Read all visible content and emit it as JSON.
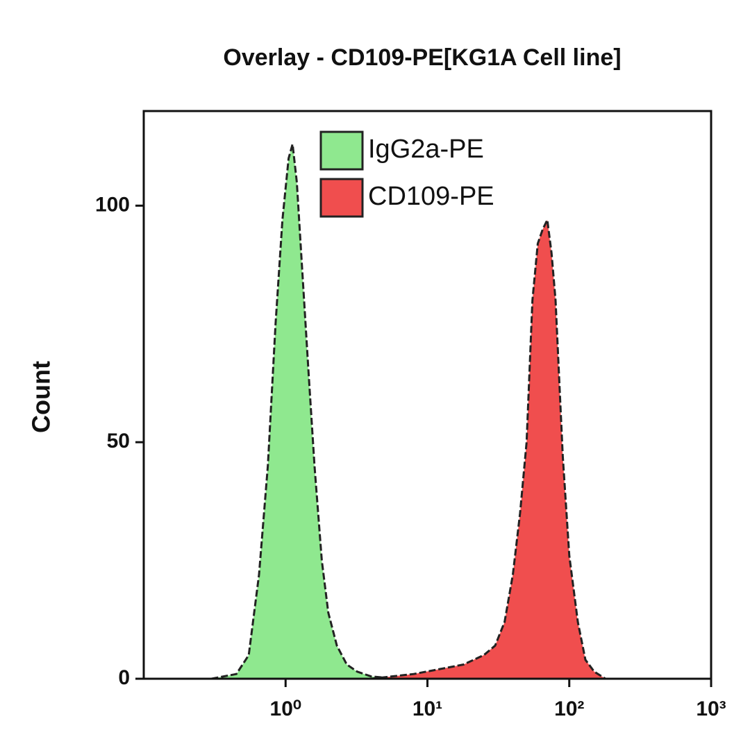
{
  "chart_data": {
    "type": "histogram-overlay",
    "title": "Overlay - CD109-PE[KG1A Cell line]",
    "y_label": "Count",
    "log_x": true,
    "xlim": [
      0.1,
      1000
    ],
    "xticks": [
      {
        "value": 1,
        "label": "10⁰"
      },
      {
        "value": 10,
        "label": "10¹"
      },
      {
        "value": 100,
        "label": "10²"
      },
      {
        "value": 1000,
        "label": "10³"
      }
    ],
    "ylim": [
      0,
      120
    ],
    "yticks": [
      0,
      50,
      100
    ],
    "series": [
      {
        "name": "IgG2a-PE",
        "color": "#8fe88f",
        "x": [
          0.3,
          0.45,
          0.55,
          0.65,
          0.75,
          0.85,
          0.95,
          1.05,
          1.12,
          1.2,
          1.3,
          1.45,
          1.6,
          1.8,
          2.0,
          2.3,
          2.7,
          3.2,
          4,
          6
        ],
        "values": [
          0,
          1,
          5,
          22,
          45,
          75,
          97,
          110,
          113,
          105,
          88,
          65,
          45,
          25,
          14,
          7,
          3,
          1.5,
          0.5,
          0
        ]
      },
      {
        "name": "CD109-PE",
        "color": "#f04e4e",
        "x": [
          4,
          8,
          12,
          18,
          25,
          30,
          35,
          40,
          45,
          50,
          55,
          60,
          65,
          70,
          75,
          80,
          90,
          100,
          115,
          130,
          150,
          180
        ],
        "values": [
          0,
          1,
          2,
          3,
          5,
          7,
          12,
          22,
          35,
          50,
          80,
          92,
          95,
          97,
          90,
          80,
          47,
          26,
          12,
          4,
          1.5,
          0
        ]
      }
    ]
  }
}
